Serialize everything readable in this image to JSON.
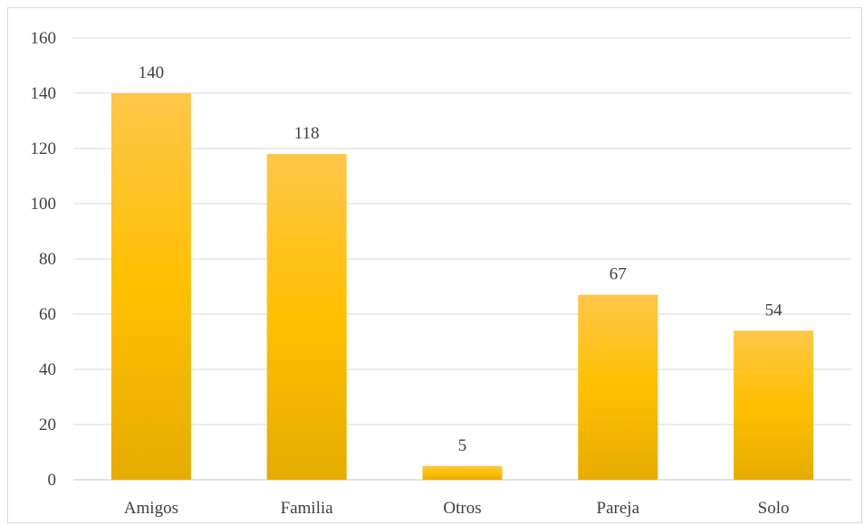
{
  "chart_data": {
    "type": "bar",
    "title": "",
    "xlabel": "",
    "ylabel": "",
    "categories": [
      "Amigos",
      "Familia",
      "Otros",
      "Pareja",
      "Solo"
    ],
    "values": [
      140,
      118,
      5,
      67,
      54
    ],
    "ylim": [
      0,
      160
    ],
    "yticks": [
      0,
      20,
      40,
      60,
      80,
      100,
      120,
      140,
      160
    ],
    "grid": true,
    "legend": "none",
    "data_labels": true,
    "colors": {
      "bar_top": "#ffc64a",
      "bar_mid": "#ffc000",
      "bar_bottom": "#e6ac00",
      "gridline": "#d9d9d9",
      "text": "#404040"
    }
  }
}
